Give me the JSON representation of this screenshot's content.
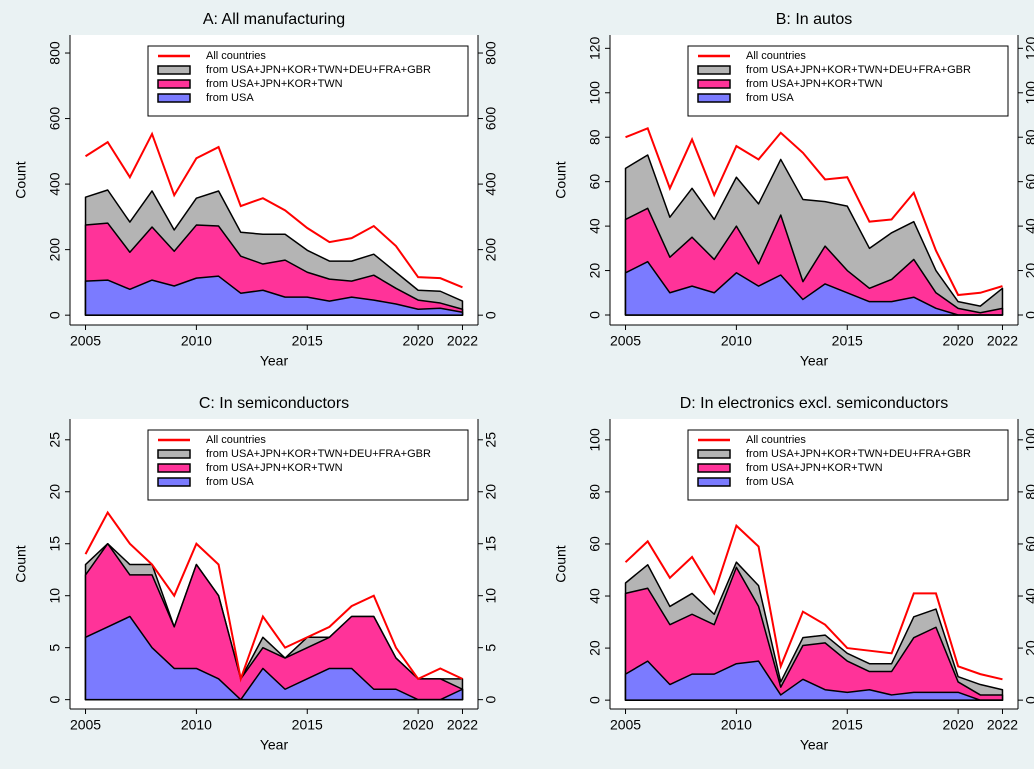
{
  "chart_data": [
    {
      "type": "area",
      "title": "A: All manufacturing",
      "xlabel": "Year",
      "ylabel": "Count",
      "x": [
        2005,
        2006,
        2007,
        2008,
        2009,
        2010,
        2011,
        2012,
        2013,
        2014,
        2015,
        2016,
        2017,
        2018,
        2019,
        2020,
        2021,
        2022
      ],
      "xlim": [
        2004.3,
        2022.7
      ],
      "xticks": [
        2005,
        2010,
        2015,
        2020,
        2022
      ],
      "ylim": [
        -30,
        855
      ],
      "yticks": [
        0,
        200,
        400,
        600,
        800
      ],
      "right_axis": true,
      "legend": "upper right",
      "series": [
        {
          "name": "All countries",
          "kind": "line",
          "color": "#ff0000",
          "values": [
            485,
            528,
            421,
            553,
            366,
            479,
            513,
            333,
            357,
            320,
            266,
            223,
            235,
            272,
            211,
            116,
            113,
            85
          ]
        },
        {
          "name": "from USA+JPN+KOR+TWN+DEU+FRA+GBR",
          "kind": "area",
          "color": "#b4b4b4",
          "values": [
            360,
            382,
            284,
            379,
            260,
            357,
            379,
            253,
            247,
            247,
            198,
            165,
            165,
            186,
            131,
            76,
            73,
            43
          ]
        },
        {
          "name": "from USA+JPN+KOR+TWN",
          "kind": "area",
          "color": "#ff3399",
          "values": [
            275,
            281,
            192,
            269,
            195,
            275,
            272,
            180,
            156,
            168,
            131,
            110,
            104,
            122,
            82,
            46,
            37,
            18
          ]
        },
        {
          "name": "from USA",
          "kind": "area",
          "color": "#7b7bff",
          "values": [
            104,
            107,
            79,
            107,
            89,
            113,
            119,
            67,
            76,
            55,
            55,
            43,
            55,
            46,
            34,
            18,
            21,
            9
          ]
        }
      ]
    },
    {
      "type": "area",
      "title": "B: In autos",
      "xlabel": "Year",
      "ylabel": "Count",
      "x": [
        2005,
        2006,
        2007,
        2008,
        2009,
        2010,
        2011,
        2012,
        2013,
        2014,
        2015,
        2016,
        2017,
        2018,
        2019,
        2020,
        2021,
        2022
      ],
      "xlim": [
        2004.3,
        2022.7
      ],
      "xticks": [
        2005,
        2010,
        2015,
        2020,
        2022
      ],
      "ylim": [
        -4.5,
        126
      ],
      "yticks": [
        0,
        20,
        40,
        60,
        80,
        100,
        120
      ],
      "right_axis": true,
      "legend": "upper right",
      "series": [
        {
          "name": "All countries",
          "kind": "line",
          "color": "#ff0000",
          "values": [
            80,
            84,
            57,
            79,
            54,
            76,
            70,
            82,
            73,
            61,
            62,
            42,
            43,
            55,
            29,
            9,
            10,
            13
          ]
        },
        {
          "name": "from USA+JPN+KOR+TWN+DEU+FRA+GBR",
          "kind": "area",
          "color": "#b4b4b4",
          "values": [
            66,
            72,
            44,
            57,
            43,
            62,
            50,
            70,
            52,
            51,
            49,
            30,
            37,
            42,
            20,
            6,
            4,
            12
          ]
        },
        {
          "name": "from USA+JPN+KOR+TWN",
          "kind": "area",
          "color": "#ff3399",
          "values": [
            43,
            48,
            26,
            35,
            25,
            40,
            23,
            45,
            15,
            31,
            20,
            12,
            16,
            25,
            10,
            3,
            1,
            3
          ]
        },
        {
          "name": "from USA",
          "kind": "area",
          "color": "#7b7bff",
          "values": [
            19,
            24,
            10,
            13,
            10,
            19,
            13,
            18,
            7,
            14,
            10,
            6,
            6,
            8,
            3,
            0,
            0,
            0
          ]
        }
      ]
    },
    {
      "type": "area",
      "title": "C: In semiconductors",
      "xlabel": "Year",
      "ylabel": "Count",
      "x": [
        2005,
        2006,
        2007,
        2008,
        2009,
        2010,
        2011,
        2012,
        2013,
        2014,
        2015,
        2016,
        2017,
        2018,
        2019,
        2020,
        2021,
        2022
      ],
      "xlim": [
        2004.3,
        2022.7
      ],
      "xticks": [
        2005,
        2010,
        2015,
        2020,
        2022
      ],
      "ylim": [
        -0.9,
        27
      ],
      "yticks": [
        0,
        5,
        10,
        15,
        20,
        25
      ],
      "right_axis": true,
      "legend": "upper right",
      "series": [
        {
          "name": "All countries",
          "kind": "line",
          "color": "#ff0000",
          "values": [
            14,
            18,
            15,
            13,
            10,
            15,
            13,
            2,
            8,
            5,
            6,
            7,
            9,
            10,
            5,
            2,
            3,
            2
          ]
        },
        {
          "name": "from USA+JPN+KOR+TWN+DEU+FRA+GBR",
          "kind": "area",
          "color": "#b4b4b4",
          "values": [
            13,
            15,
            13,
            13,
            7,
            13,
            10,
            2,
            6,
            4,
            6,
            6,
            8,
            8,
            4,
            2,
            2,
            2
          ]
        },
        {
          "name": "from USA+JPN+KOR+TWN",
          "kind": "area",
          "color": "#ff3399",
          "values": [
            12,
            15,
            12,
            12,
            7,
            13,
            10,
            2,
            5,
            4,
            5,
            6,
            8,
            8,
            4,
            2,
            2,
            1
          ]
        },
        {
          "name": "from USA",
          "kind": "area",
          "color": "#7b7bff",
          "values": [
            6,
            7,
            8,
            5,
            3,
            3,
            2,
            0,
            3,
            1,
            2,
            3,
            3,
            1,
            1,
            0,
            0,
            1
          ]
        }
      ]
    },
    {
      "type": "area",
      "title": "D: In electronics excl. semiconductors",
      "xlabel": "Year",
      "ylabel": "Count",
      "x": [
        2005,
        2006,
        2007,
        2008,
        2009,
        2010,
        2011,
        2012,
        2013,
        2014,
        2015,
        2016,
        2017,
        2018,
        2019,
        2020,
        2021,
        2022
      ],
      "xlim": [
        2004.3,
        2022.7
      ],
      "xticks": [
        2005,
        2010,
        2015,
        2020,
        2022
      ],
      "ylim": [
        -3.4,
        108
      ],
      "yticks": [
        0,
        20,
        40,
        60,
        80,
        100
      ],
      "right_axis": true,
      "legend": "upper right",
      "series": [
        {
          "name": "All countries",
          "kind": "line",
          "color": "#ff0000",
          "values": [
            53,
            61,
            47,
            55,
            41,
            67,
            59,
            13,
            34,
            29,
            20,
            19,
            18,
            41,
            41,
            13,
            10,
            8
          ]
        },
        {
          "name": "from USA+JPN+KOR+TWN+DEU+FRA+GBR",
          "kind": "area",
          "color": "#b4b4b4",
          "values": [
            45,
            52,
            36,
            41,
            33,
            53,
            44,
            7,
            24,
            25,
            18,
            14,
            14,
            32,
            35,
            9,
            6,
            4
          ]
        },
        {
          "name": "from USA+JPN+KOR+TWN",
          "kind": "area",
          "color": "#ff3399",
          "values": [
            41,
            43,
            29,
            33,
            29,
            51,
            36,
            5,
            21,
            22,
            15,
            11,
            11,
            24,
            28,
            7,
            2,
            2
          ]
        },
        {
          "name": "from USA",
          "kind": "area",
          "color": "#7b7bff",
          "values": [
            10,
            15,
            6,
            10,
            10,
            14,
            15,
            2,
            8,
            4,
            3,
            4,
            2,
            3,
            3,
            3,
            0,
            0
          ]
        }
      ]
    }
  ]
}
